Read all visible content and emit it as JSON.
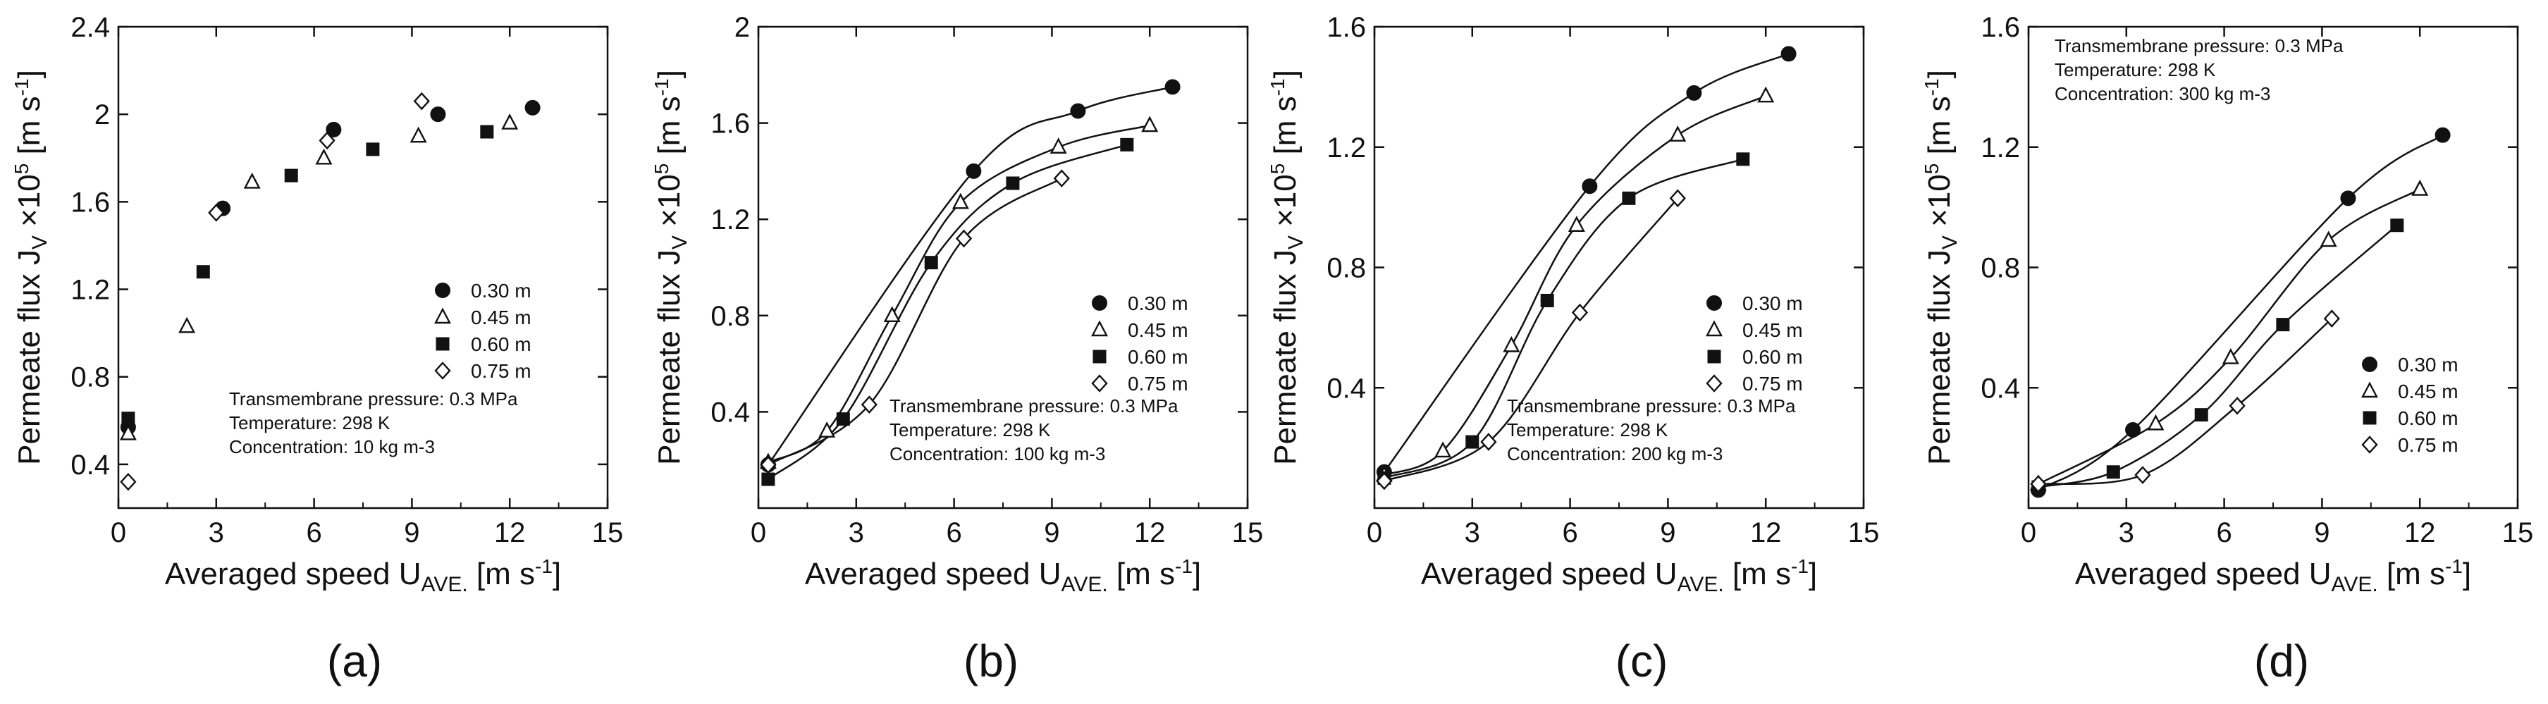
{
  "figure": {
    "panel_labels": [
      "(a)",
      "(b)",
      "(c)",
      "(d)"
    ]
  },
  "chart_data": [
    {
      "type": "scatter",
      "panel": "(a)",
      "title": "",
      "xlabel": "Averaged speed U",
      "xlabel_sub": "AVE.",
      "xlabel_unit": " [m s",
      "xlabel_unit_sup": "-1",
      "xlabel_unit_end": "]",
      "ylabel": "Permeate flux J",
      "ylabel_sub": "V",
      "ylabel_mid": " ×10",
      "ylabel_sup": "5",
      "ylabel_unit": " [m s",
      "ylabel_unit_sup": "-1",
      "ylabel_unit_end": "]",
      "xlim": [
        0,
        15
      ],
      "ylim": [
        0.2,
        2.4
      ],
      "xticks": [
        "0",
        "3",
        "6",
        "9",
        "12",
        "15"
      ],
      "yticks": [
        "0.4",
        "0.8",
        "1.2",
        "1.6",
        "2",
        "2.4"
      ],
      "ytick_values": [
        0.4,
        0.8,
        1.2,
        1.6,
        2.0,
        2.4
      ],
      "annotations": [
        "Transmembrane pressure: 0.3 MPa",
        "Temperature: 298 K",
        "Concentration: 10 kg m-3"
      ],
      "legend": [
        "0.30 m",
        "0.45 m",
        "0.60 m",
        "0.75 m"
      ],
      "series": [
        {
          "name": "0.30 m",
          "marker": "circle",
          "x": [
            0.3,
            3.2,
            6.6,
            9.8,
            12.7
          ],
          "y": [
            0.57,
            1.57,
            1.93,
            2.0,
            2.03
          ]
        },
        {
          "name": "0.45 m",
          "marker": "triangle",
          "x": [
            0.3,
            2.1,
            4.1,
            6.3,
            9.2,
            12.0
          ],
          "y": [
            0.54,
            1.03,
            1.69,
            1.8,
            1.9,
            1.96
          ]
        },
        {
          "name": "0.60 m",
          "marker": "square",
          "x": [
            0.3,
            2.6,
            5.3,
            7.8,
            11.3
          ],
          "y": [
            0.61,
            1.28,
            1.72,
            1.84,
            1.92
          ]
        },
        {
          "name": "0.75 m",
          "marker": "diamond",
          "x": [
            0.3,
            3.0,
            6.4,
            9.3
          ],
          "y": [
            0.32,
            1.55,
            1.88,
            2.06
          ]
        }
      ]
    },
    {
      "type": "line",
      "panel": "(b)",
      "title": "",
      "xlabel": "Averaged speed U",
      "xlabel_sub": "AVE.",
      "xlabel_unit": " [m s",
      "xlabel_unit_sup": "-1",
      "xlabel_unit_end": "]",
      "ylabel": "Permeate flux J",
      "ylabel_sub": "V",
      "ylabel_mid": " ×10",
      "ylabel_sup": "5",
      "ylabel_unit": " [m s",
      "ylabel_unit_sup": "-1",
      "ylabel_unit_end": "]",
      "xlim": [
        0,
        15
      ],
      "ylim": [
        0,
        2
      ],
      "xticks": [
        "0",
        "3",
        "6",
        "9",
        "12",
        "15"
      ],
      "yticks": [
        "0.4",
        "0.8",
        "1.2",
        "1.6",
        "2"
      ],
      "ytick_values": [
        0.4,
        0.8,
        1.2,
        1.6,
        2.0
      ],
      "annotations": [
        "Transmembrane pressure: 0.3 MPa",
        "Temperature: 298 K",
        "Concentration: 100 kg m-3"
      ],
      "legend": [
        "0.30 m",
        "0.45 m",
        "0.60 m",
        "0.75 m"
      ],
      "series": [
        {
          "name": "0.30 m",
          "marker": "circle",
          "x": [
            0.3,
            6.6,
            9.8,
            12.7
          ],
          "y": [
            0.18,
            1.4,
            1.65,
            1.75
          ]
        },
        {
          "name": "0.45 m",
          "marker": "triangle",
          "x": [
            0.3,
            2.1,
            4.1,
            6.2,
            9.2,
            12.0
          ],
          "y": [
            0.19,
            0.32,
            0.8,
            1.27,
            1.5,
            1.59
          ]
        },
        {
          "name": "0.60 m",
          "marker": "square",
          "x": [
            0.3,
            2.6,
            5.3,
            7.8,
            11.3
          ],
          "y": [
            0.12,
            0.37,
            1.02,
            1.35,
            1.51
          ]
        },
        {
          "name": "0.75 m",
          "marker": "diamond",
          "x": [
            0.3,
            3.4,
            6.3,
            9.3
          ],
          "y": [
            0.18,
            0.43,
            1.12,
            1.37
          ]
        }
      ]
    },
    {
      "type": "line",
      "panel": "(c)",
      "title": "",
      "xlabel": "Averaged speed U",
      "xlabel_sub": "AVE.",
      "xlabel_unit": " [m s",
      "xlabel_unit_sup": "-1",
      "xlabel_unit_end": "]",
      "ylabel": "Permeate flux J",
      "ylabel_sub": "V",
      "ylabel_mid": " ×10",
      "ylabel_sup": "5",
      "ylabel_unit": " [m s",
      "ylabel_unit_sup": "-1",
      "ylabel_unit_end": "]",
      "xlim": [
        0,
        15
      ],
      "ylim": [
        0,
        1.6
      ],
      "xticks": [
        "0",
        "3",
        "6",
        "9",
        "12",
        "15"
      ],
      "yticks": [
        "0.4",
        "0.8",
        "1.2",
        "1.6"
      ],
      "ytick_values": [
        0.4,
        0.8,
        1.2,
        1.6
      ],
      "annotations": [
        "Transmembrane pressure: 0.3 MPa",
        "Temperature: 298 K",
        "Concentration: 200 kg m-3"
      ],
      "legend": [
        "0.30 m",
        "0.45 m",
        "0.60 m",
        "0.75 m"
      ],
      "series": [
        {
          "name": "0.30 m",
          "marker": "circle",
          "x": [
            0.3,
            6.6,
            9.8,
            12.7
          ],
          "y": [
            0.12,
            1.07,
            1.38,
            1.51
          ]
        },
        {
          "name": "0.45 m",
          "marker": "triangle",
          "x": [
            0.3,
            2.1,
            4.2,
            6.2,
            9.3,
            12.0
          ],
          "y": [
            0.11,
            0.19,
            0.54,
            0.94,
            1.24,
            1.37
          ]
        },
        {
          "name": "0.60 m",
          "marker": "square",
          "x": [
            0.3,
            3.0,
            5.3,
            7.8,
            11.3
          ],
          "y": [
            0.1,
            0.22,
            0.69,
            1.03,
            1.16
          ]
        },
        {
          "name": "0.75 m",
          "marker": "diamond",
          "x": [
            0.3,
            3.5,
            6.3,
            9.3
          ],
          "y": [
            0.09,
            0.22,
            0.65,
            1.03
          ]
        }
      ]
    },
    {
      "type": "line",
      "panel": "(d)",
      "title": "",
      "xlabel": "Averaged speed U",
      "xlabel_sub": "AVE.",
      "xlabel_unit": " [m s",
      "xlabel_unit_sup": "-1",
      "xlabel_unit_end": "]",
      "ylabel": "Permeate flux J",
      "ylabel_sub": "V",
      "ylabel_mid": " ×10",
      "ylabel_sup": "5",
      "ylabel_unit": " [m s",
      "ylabel_unit_sup": "-1",
      "ylabel_unit_end": "]",
      "xlim": [
        0,
        15
      ],
      "ylim": [
        0,
        1.6
      ],
      "xticks": [
        "0",
        "3",
        "6",
        "9",
        "12",
        "15"
      ],
      "yticks": [
        "0.4",
        "0.8",
        "1.2",
        "1.6"
      ],
      "ytick_values": [
        0.4,
        0.8,
        1.2,
        1.6
      ],
      "annotations": [
        "Transmembrane pressure: 0.3 MPa",
        "Temperature: 298 K",
        "Concentration: 300 kg m-3"
      ],
      "legend": [
        "0.30 m",
        "0.45 m",
        "0.60 m",
        "0.75 m"
      ],
      "series": [
        {
          "name": "0.30 m",
          "marker": "circle",
          "x": [
            0.3,
            3.2,
            9.8,
            12.7
          ],
          "y": [
            0.06,
            0.26,
            1.03,
            1.24
          ]
        },
        {
          "name": "0.45 m",
          "marker": "triangle",
          "x": [
            0.3,
            3.9,
            6.2,
            9.2,
            12.0
          ],
          "y": [
            0.08,
            0.28,
            0.5,
            0.89,
            1.06
          ]
        },
        {
          "name": "0.60 m",
          "marker": "square",
          "x": [
            0.3,
            2.6,
            5.3,
            7.8,
            11.3
          ],
          "y": [
            0.07,
            0.12,
            0.31,
            0.61,
            0.94
          ]
        },
        {
          "name": "0.75 m",
          "marker": "diamond",
          "x": [
            0.3,
            3.5,
            6.4,
            9.3
          ],
          "y": [
            0.08,
            0.11,
            0.34,
            0.63
          ]
        }
      ]
    }
  ]
}
